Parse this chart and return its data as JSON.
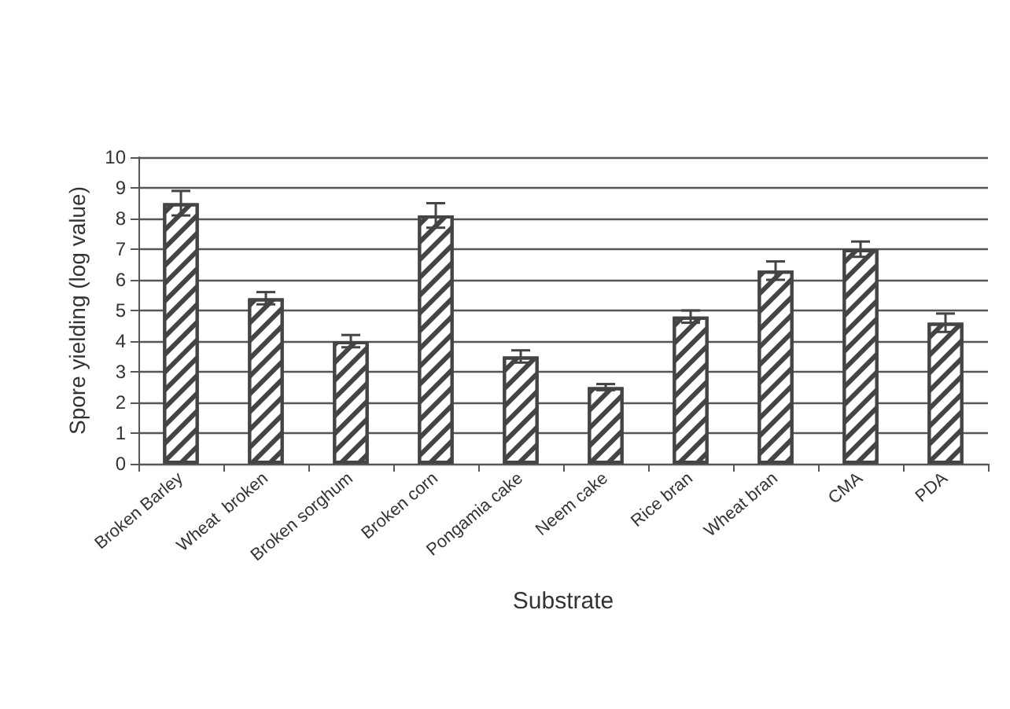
{
  "chart_data": {
    "type": "bar",
    "xlabel": "Substrate",
    "ylabel": "Spore yielding (log value)",
    "categories": [
      "Broken Barley",
      "Wheat  broken",
      "Broken sorghum",
      "Broken corn",
      "Pongamia cake",
      "Neem cake",
      "Rice bran",
      "Wheat bran",
      "CMA",
      "PDA"
    ],
    "values": [
      8.5,
      5.4,
      4.0,
      8.1,
      3.5,
      2.5,
      4.8,
      6.3,
      7.0,
      4.6
    ],
    "errors": [
      0.4,
      0.2,
      0.2,
      0.4,
      0.2,
      0.1,
      0.2,
      0.3,
      0.25,
      0.3
    ],
    "color": "#444444",
    "ylim": [
      0,
      10
    ],
    "yticks": [
      0,
      1,
      2,
      3,
      4,
      5,
      6,
      7,
      8,
      9,
      10
    ],
    "grid": "y"
  }
}
